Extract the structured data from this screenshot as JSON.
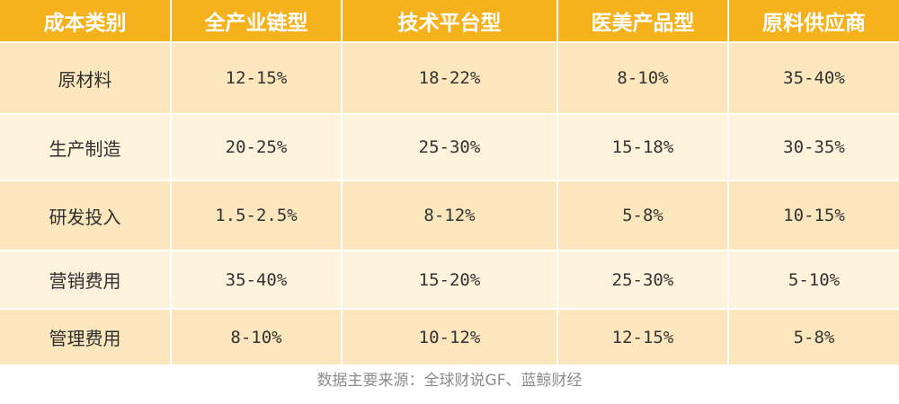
{
  "table": {
    "headers": [
      "成本类别",
      "全产业链型",
      "技术平台型",
      "医美产品型",
      "原料供应商"
    ],
    "rows": [
      [
        "原材料",
        "12-15%",
        "18-22%",
        "8-10%",
        "35-40%"
      ],
      [
        "生产制造",
        "20-25%",
        "25-30%",
        "15-18%",
        "30-35%"
      ],
      [
        "研发投入",
        "1.5-2.5%",
        "8-12%",
        "5-8%",
        "10-15%"
      ],
      [
        "营销费用",
        "35-40%",
        "15-20%",
        "25-30%",
        "5-10%"
      ],
      [
        "管理费用",
        "8-10%",
        "10-12%",
        "12-15%",
        "5-8%"
      ]
    ]
  },
  "footer": {
    "source": "数据主要来源：全球财说GF、蓝鲸财经"
  },
  "colors": {
    "header_bg": "#f5b21c",
    "header_text": "#ffffff",
    "row_dark": "#fbe6bd",
    "row_light": "#fdf2db",
    "source_text": "#8c8c8c"
  }
}
